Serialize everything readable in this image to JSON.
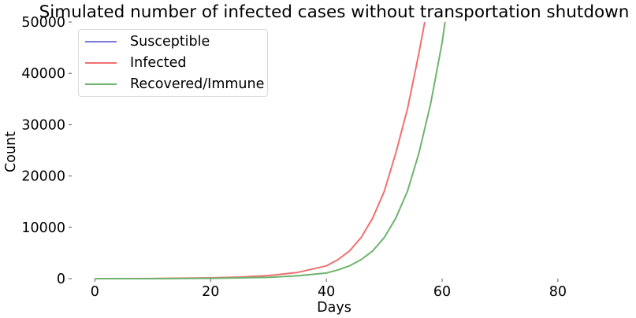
{
  "chart_data": {
    "type": "line",
    "title": "Simulated number of infected cases without transportation shutdown",
    "xlabel": "Days",
    "ylabel": "Count",
    "xlim": [
      -4,
      92
    ],
    "ylim": [
      0,
      50000
    ],
    "xticks": [
      "0",
      "20",
      "40",
      "60",
      "80"
    ],
    "yticks": [
      "0",
      "10000",
      "20000",
      "30000",
      "40000",
      "50000"
    ],
    "grid": false,
    "legend_position": "top-left",
    "series": [
      {
        "name": "Susceptible",
        "color": "#7b7bdb",
        "x": [
          0,
          10,
          20,
          25,
          30,
          35,
          40,
          42,
          44,
          46,
          48,
          50,
          52,
          54,
          56,
          57,
          58,
          60,
          62
        ],
        "values": [
          null,
          null,
          null,
          null,
          null,
          null,
          null,
          null,
          null,
          null,
          null,
          null,
          null,
          null,
          null,
          null,
          null,
          null,
          null
        ]
      },
      {
        "name": "Infected",
        "color": "#f07070",
        "x": [
          0,
          10,
          20,
          25,
          30,
          35,
          40,
          42,
          44,
          46,
          48,
          50,
          52,
          54,
          56,
          57
        ],
        "values": [
          2,
          20,
          150,
          300,
          600,
          1200,
          2500,
          3700,
          5400,
          8000,
          11800,
          17000,
          24500,
          33000,
          44000,
          50000
        ]
      },
      {
        "name": "Recovered/Immune",
        "color": "#6fb36f",
        "x": [
          0,
          10,
          20,
          25,
          30,
          35,
          40,
          42,
          44,
          46,
          48,
          50,
          52,
          54,
          56,
          58,
          60,
          60.5
        ],
        "values": [
          1,
          8,
          60,
          150,
          250,
          550,
          1100,
          1700,
          2500,
          3700,
          5400,
          8000,
          11800,
          17000,
          24500,
          34000,
          46000,
          50000
        ]
      }
    ]
  }
}
